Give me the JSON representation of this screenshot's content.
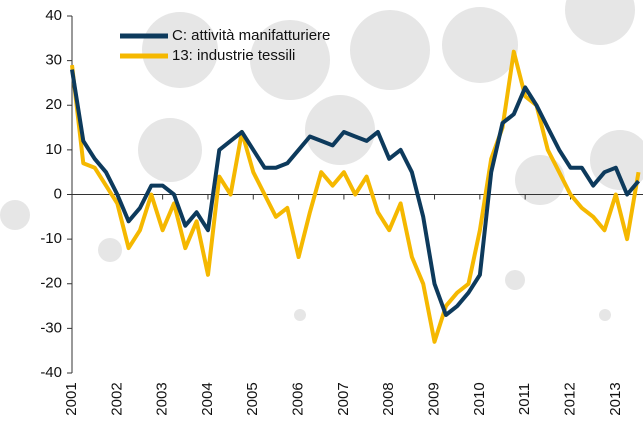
{
  "chart_data": {
    "type": "line",
    "x": [
      2001,
      2001.25,
      2001.5,
      2001.75,
      2002,
      2002.25,
      2002.5,
      2002.75,
      2003,
      2003.25,
      2003.5,
      2003.75,
      2004,
      2004.25,
      2004.5,
      2004.75,
      2005,
      2005.25,
      2005.5,
      2005.75,
      2006,
      2006.25,
      2006.5,
      2006.75,
      2007,
      2007.25,
      2007.5,
      2007.75,
      2008,
      2008.25,
      2008.5,
      2008.75,
      2009,
      2009.25,
      2009.5,
      2009.75,
      2010,
      2010.25,
      2010.5,
      2010.75,
      2011,
      2011.25,
      2011.5,
      2011.75,
      2012,
      2012.25,
      2012.5,
      2012.75,
      2013,
      2013.25,
      2013.5
    ],
    "series": [
      {
        "name": "C: attività manifatturiere",
        "color": "#0d3a5c",
        "values": [
          28,
          12,
          8,
          5,
          0,
          -6,
          -3,
          2,
          2,
          0,
          -7,
          -4,
          -8,
          10,
          12,
          14,
          10,
          6,
          6,
          7,
          10,
          13,
          12,
          11,
          14,
          13,
          12,
          14,
          8,
          10,
          5,
          -5,
          -20,
          -27,
          -25,
          -22,
          -18,
          5,
          16,
          18,
          24,
          20,
          15,
          10,
          6,
          6,
          2,
          5,
          6,
          0,
          3
        ]
      },
      {
        "name": "13: industrie tessili",
        "color": "#f5b800",
        "values": [
          29,
          7,
          6,
          2,
          -2,
          -12,
          -8,
          0,
          -8,
          -2,
          -12,
          -6,
          -18,
          4,
          0,
          14,
          5,
          0,
          -5,
          -3,
          -14,
          -4,
          5,
          2,
          5,
          0,
          4,
          -4,
          -8,
          -2,
          -14,
          -20,
          -33,
          -25,
          -22,
          -20,
          -8,
          8,
          15,
          32,
          22,
          20,
          10,
          5,
          0,
          -3,
          -5,
          -8,
          0,
          -10,
          5
        ]
      }
    ],
    "xlim": [
      2001,
      2013.6
    ],
    "xticks": [
      2001,
      2002,
      2003,
      2004,
      2005,
      2006,
      2007,
      2008,
      2009,
      2010,
      2011,
      2012,
      2013
    ],
    "ylim": [
      -40,
      40
    ],
    "yticks": [
      -40,
      -30,
      -20,
      -10,
      0,
      10,
      20,
      30,
      40
    ],
    "legend": "upper-left"
  }
}
